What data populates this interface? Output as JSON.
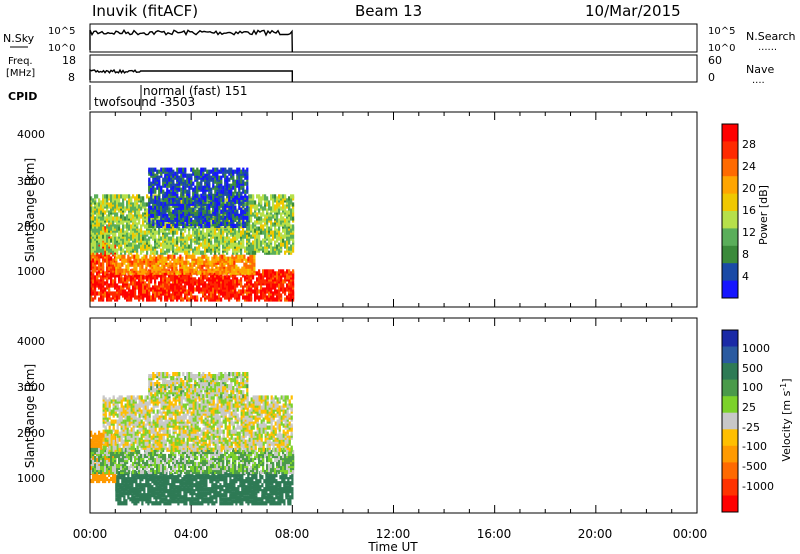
{
  "header": {
    "station": "Inuvik (fitACF)",
    "beam": "Beam 13",
    "date": "10/Mar/2015"
  },
  "nsky_panel": {
    "left_label": "N.Sky",
    "left_ticks": [
      "10^5",
      "10^0"
    ],
    "right_ticks": [
      "10^5",
      "10^0"
    ],
    "right_label": "N.Search",
    "right_legend": "......"
  },
  "freq_panel": {
    "left_label_line1": "Freq.",
    "left_label_line2": "[MHz]",
    "left_ticks": [
      "18",
      "8"
    ],
    "right_ticks": [
      "60",
      "0"
    ],
    "right_label": "Nave",
    "right_legend": "...."
  },
  "cpid": {
    "label": "CPID",
    "programs": [
      "normal (fast) 151",
      "twofsound -3503"
    ]
  },
  "power_panel": {
    "ylabel": "Slant Range [km]",
    "yticks": [
      "4000",
      "3000",
      "2000",
      "1000"
    ],
    "colorbar_label": "Power [dB]",
    "colorbar_ticks": [
      "28",
      "24",
      "20",
      "16",
      "12",
      "8",
      "4"
    ],
    "colorbar_colors": [
      "#ff0000",
      "#ff2a00",
      "#ff6a00",
      "#ffa500",
      "#f0c800",
      "#b6e04a",
      "#5aae5a",
      "#3a8a3a",
      "#1a4aa6",
      "#1515ff"
    ]
  },
  "velocity_panel": {
    "ylabel": "Slant Range [km]",
    "yticks": [
      "4000",
      "3000",
      "2000",
      "1000"
    ],
    "colorbar_label": "Velocity [m s",
    "colorbar_label_sup": "-1",
    "colorbar_label_end": "]",
    "colorbar_ticks": [
      "1000",
      "500",
      "100",
      "25",
      "-25",
      "-100",
      "-500",
      "-1000"
    ],
    "colorbar_colors": [
      "#1a2aa6",
      "#2a5aa0",
      "#2e7a55",
      "#4a9a4a",
      "#7cd22a",
      "#c8c8c8",
      "#ffbf00",
      "#ff9a00",
      "#ff6a00",
      "#ff3300",
      "#ff0000"
    ]
  },
  "xaxis": {
    "ticks": [
      "00:00",
      "04:00",
      "08:00",
      "12:00",
      "16:00",
      "20:00",
      "00:00"
    ],
    "label": "Time UT"
  },
  "chart_data": {
    "type": "heatmap",
    "title": "Inuvik (fitACF)",
    "subtitle": "Beam 13",
    "date": "10/Mar/2015",
    "xlabel": "Time UT",
    "ylabel": "Slant Range [km]",
    "x_range_hours": [
      0,
      24
    ],
    "y_range_km": [
      180,
      4550
    ],
    "data_end_hour": 8.0,
    "freq_mhz": {
      "before_hour_2": 10,
      "after_hour_2": 11
    },
    "power_db_regions": [
      {
        "t0": 0.0,
        "t1": 8.0,
        "r0": 350,
        "r1": 1000,
        "db": 28
      },
      {
        "t0": 0.0,
        "t1": 1.0,
        "r0": 1000,
        "r1": 2000,
        "db": 26
      },
      {
        "t0": 1.0,
        "t1": 6.5,
        "r0": 950,
        "r1": 1350,
        "db": 22
      },
      {
        "t0": 0.0,
        "t1": 8.0,
        "r0": 1400,
        "r1": 2700,
        "db": 14
      },
      {
        "t0": 2.3,
        "t1": 6.2,
        "r0": 2000,
        "r1": 3300,
        "db": 6
      }
    ],
    "velocity_regions": [
      {
        "t0": 1.0,
        "t1": 8.0,
        "r0": 400,
        "r1": 1100,
        "v": 200
      },
      {
        "t0": 0.0,
        "t1": 1.0,
        "r0": 900,
        "r1": 2000,
        "v": -200
      },
      {
        "t0": 0.0,
        "t1": 8.0,
        "r0": 1100,
        "r1": 1600,
        "v": 50
      },
      {
        "t0": 0.5,
        "t1": 8.0,
        "r0": 1600,
        "r1": 2800,
        "v": 0
      },
      {
        "t0": 2.3,
        "t1": 6.2,
        "r0": 2800,
        "r1": 3300,
        "v": 10
      }
    ]
  }
}
